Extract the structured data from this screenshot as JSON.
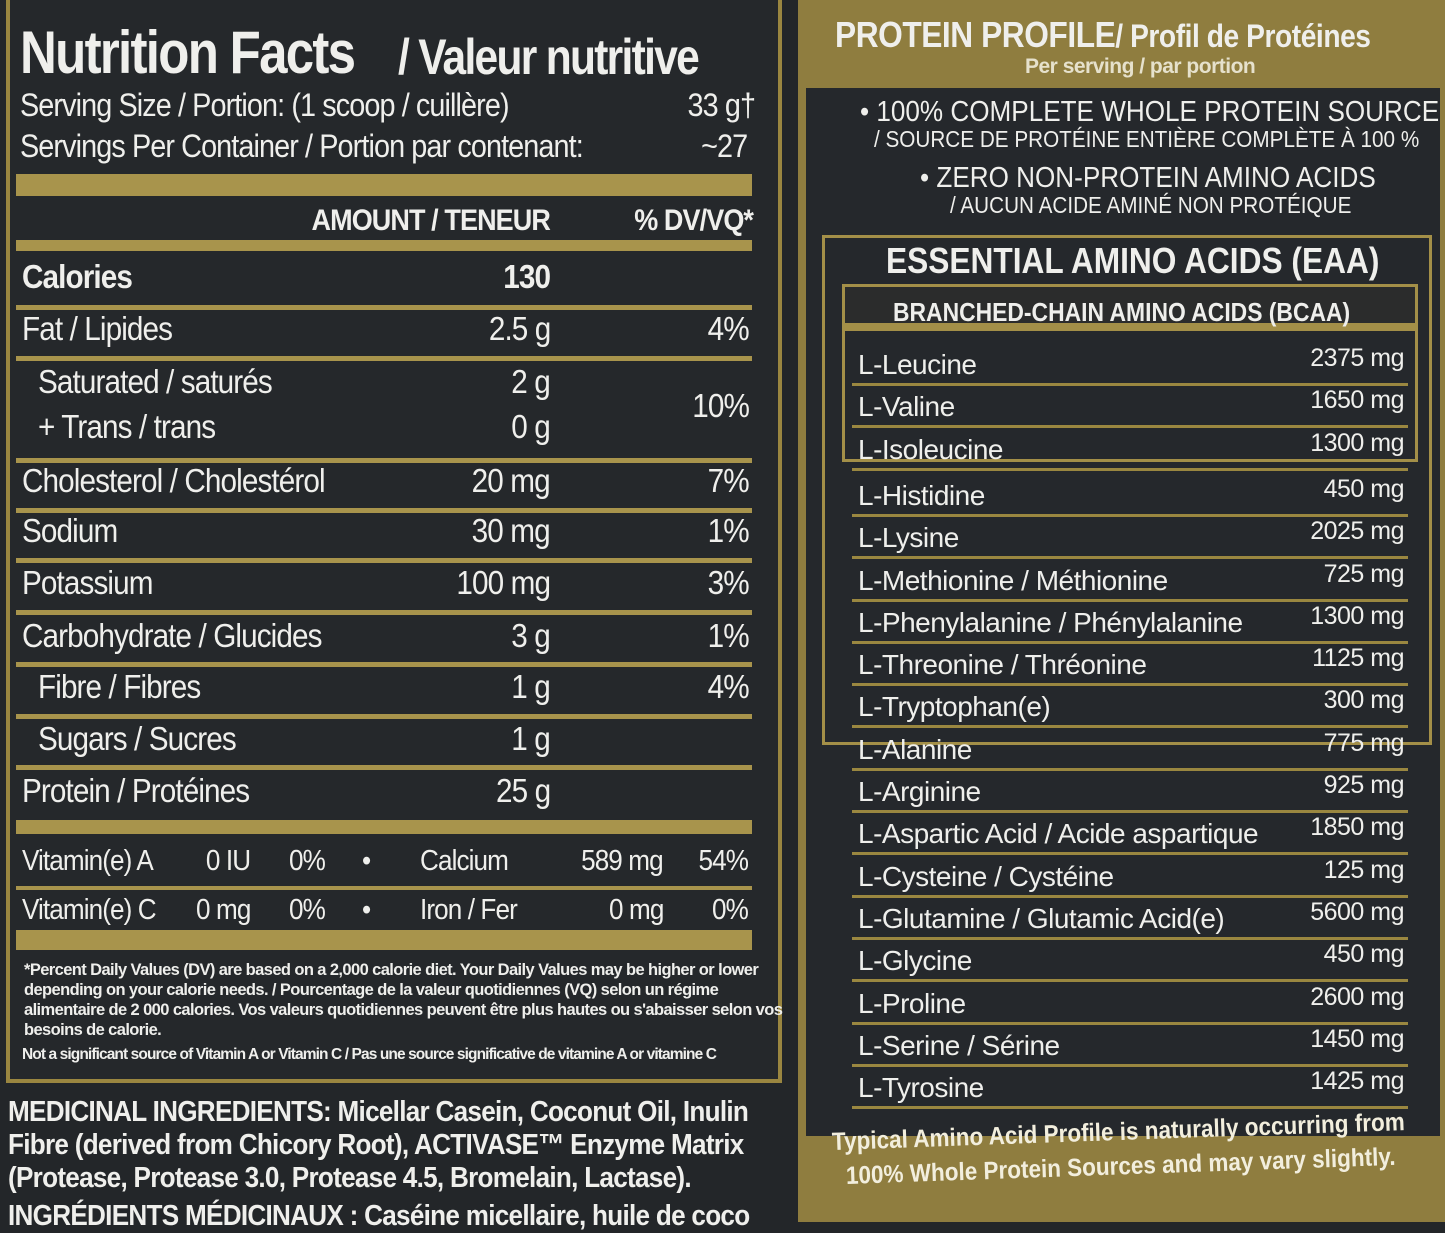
{
  "nutrition": {
    "title": "Nutrition Facts",
    "title_fr": "/ Valeur nutritive",
    "serving_size_label": "Serving Size / Portion: (1 scoop / cuillère)",
    "serving_size_value": "33 g†",
    "servings_label": "Servings Per Container / Portion par contenant:",
    "servings_value": "~27",
    "col_amount": "AMOUNT / TENEUR",
    "col_dv": "% DV/VQ*",
    "rows": [
      {
        "label": "Calories",
        "amount": "130",
        "dv": ""
      },
      {
        "label": "Fat / Lipides",
        "amount": "2.5 g",
        "dv": "4%"
      },
      {
        "label": "Saturated / saturés",
        "amount": "2 g",
        "dv": "10%"
      },
      {
        "label": "+ Trans / trans",
        "amount": "0 g",
        "dv": ""
      },
      {
        "label": "Cholesterol / Cholestérol",
        "amount": "20 mg",
        "dv": "7%"
      },
      {
        "label": "Sodium",
        "amount": "30 mg",
        "dv": "1%"
      },
      {
        "label": "Potassium",
        "amount": "100 mg",
        "dv": "3%"
      },
      {
        "label": "Carbohydrate / Glucides",
        "amount": "3 g",
        "dv": "1%"
      },
      {
        "label": "Fibre / Fibres",
        "amount": "1 g",
        "dv": "4%"
      },
      {
        "label": "Sugars / Sucres",
        "amount": "1 g",
        "dv": ""
      },
      {
        "label": "Protein / Protéines",
        "amount": "25 g",
        "dv": ""
      }
    ],
    "vitamins": [
      {
        "label": "Vitamin(e) A",
        "amount": "0 IU",
        "dv": "0%",
        "label2": "Calcium",
        "amount2": "589 mg",
        "dv2": "54%"
      },
      {
        "label": "Vitamin(e) C",
        "amount": "0 mg",
        "dv": "0%",
        "label2": "Iron / Fer",
        "amount2": "0 mg",
        "dv2": "0%"
      }
    ],
    "footnote": "*Percent Daily Values (DV) are based on a 2,000 calorie diet. Your Daily Values may be higher or lower depending on your calorie needs. / Pourcentage de la valeur quotidiennes (VQ) selon un régime alimentaire de 2 000 calories. Vos valeurs quotidiennes peuvent être plus hautes ou s'abaisser selon vos besoins de calorie.",
    "not_significant": "Not a significant source of Vitamin A or Vitamin C / Pas une source significative de vitamine A or vitamine C"
  },
  "ingredients": {
    "lines": [
      "MEDICINAL INGREDIENTS: Micellar Casein, Coconut Oil, Inulin",
      "Fibre (derived from Chicory Root), ACTIVASE™ Enzyme Matrix",
      "(Protease, Protease 3.0, Protease 4.5, Bromelain, Lactase).",
      "INGRÉDIENTS MÉDICINAUX : Caséine micellaire, huile de coco"
    ]
  },
  "protein_profile": {
    "title": "PROTEIN PROFILE",
    "title_fr": "/ Profil de Protéines",
    "subtitle": "Per serving / par portion",
    "claim1": "• 100% COMPLETE WHOLE PROTEIN SOURCE",
    "claim1_fr": "/ SOURCE DE PROTÉINE ENTIÈRE COMPLÈTE À 100 %",
    "claim2": "• ZERO NON-PROTEIN AMINO ACIDS",
    "claim2_fr": "/ AUCUN ACIDE AMINÉ NON PROTÉIQUE",
    "eaa_title": "ESSENTIAL AMINO ACIDS (EAA)",
    "bcaa_title": "BRANCHED-CHAIN AMINO ACIDS (BCAA)",
    "amino_acids": [
      {
        "name": "L-Leucine",
        "value": "2375 mg"
      },
      {
        "name": "L-Valine",
        "value": "1650 mg"
      },
      {
        "name": "L-Isoleucine",
        "value": "1300 mg"
      },
      {
        "name": "L-Histidine",
        "value": "450 mg"
      },
      {
        "name": "L-Lysine",
        "value": "2025 mg"
      },
      {
        "name": "L-Methionine / Méthionine",
        "value": "725 mg"
      },
      {
        "name": "L-Phenylalanine / Phénylalanine",
        "value": "1300 mg"
      },
      {
        "name": "L-Threonine / Thréonine",
        "value": "1125 mg"
      },
      {
        "name": "L-Tryptophan(e)",
        "value": "300 mg"
      },
      {
        "name": "L-Alanine",
        "value": "775 mg"
      },
      {
        "name": "L-Arginine",
        "value": "925 mg"
      },
      {
        "name": "L-Aspartic Acid / Acide aspartique",
        "value": "1850 mg"
      },
      {
        "name": "L-Cysteine / Cystéine",
        "value": "125 mg"
      },
      {
        "name": "L-Glutamine / Glutamic Acid(e)",
        "value": "5600 mg"
      },
      {
        "name": "L-Glycine",
        "value": "450 mg"
      },
      {
        "name": "L-Proline",
        "value": "2600 mg"
      },
      {
        "name": "L-Serine / Sérine",
        "value": "1450 mg"
      },
      {
        "name": "L-Tyrosine",
        "value": "1425 mg"
      }
    ],
    "footer_line1": "Typical Amino Acid Profile is naturally occurring from",
    "footer_line2": "100% Whole Protein Sources and may vary slightly."
  },
  "colors": {
    "gold": "#a8944c",
    "panel": "#25282b",
    "text": "#efefec"
  }
}
